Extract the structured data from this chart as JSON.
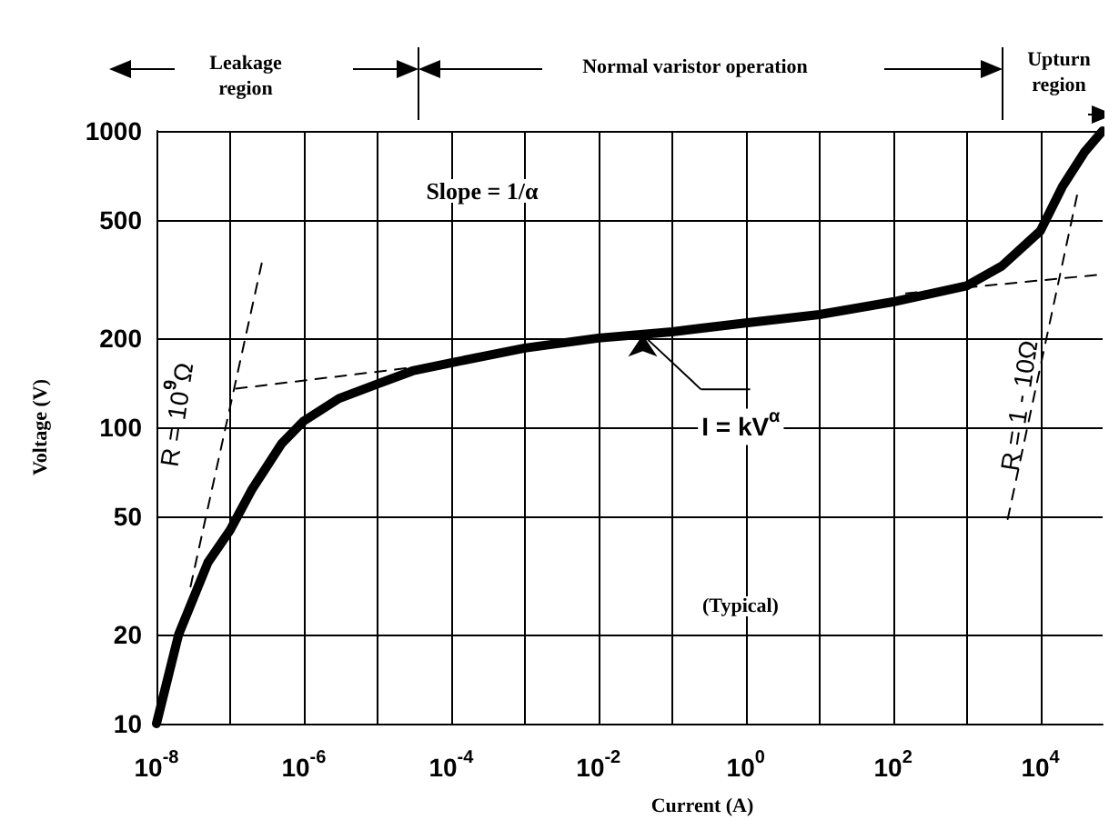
{
  "chart_data": {
    "type": "line",
    "xlabel": "Current (A)",
    "ylabel": "Voltage (V)",
    "log": "xy",
    "xlim": [
      1e-08,
      70000
    ],
    "ylim": [
      10,
      1000
    ],
    "xticks": [
      {
        "value": 1e-08,
        "label": "10$^{-8}$"
      },
      {
        "value": 1e-07,
        "label": null
      },
      {
        "value": 1e-06,
        "label": "10$^{-6}$"
      },
      {
        "value": 1e-05,
        "label": null
      },
      {
        "value": 0.0001,
        "label": "10$^{-4}$"
      },
      {
        "value": 0.001,
        "label": null
      },
      {
        "value": 0.01,
        "label": "10$^{-2}$"
      },
      {
        "value": 0.1,
        "label": null
      },
      {
        "value": 1,
        "label": "10$^{0}$"
      },
      {
        "value": 10,
        "label": null
      },
      {
        "value": 100,
        "label": "10$^{2}$"
      },
      {
        "value": 1000,
        "label": null
      },
      {
        "value": 10000,
        "label": "10$^{4}$"
      }
    ],
    "yticks": [
      10,
      20,
      50,
      100,
      200,
      500,
      1000
    ],
    "grid": true,
    "series": [
      {
        "color": "#000000",
        "line_style": "solid",
        "x": [
          1e-08,
          2e-08,
          5e-08,
          1e-07,
          2e-07,
          5e-07,
          1e-06,
          3e-06,
          1e-05,
          3e-05,
          0.0001,
          0.001,
          0.01,
          0.1,
          1,
          10,
          100,
          1000,
          3000,
          10000,
          20000,
          40000,
          70000
        ],
        "values": [
          10,
          20,
          35,
          45,
          62,
          88,
          105,
          125,
          140,
          155,
          165,
          185,
          200,
          210,
          225,
          240,
          265,
          300,
          350,
          460,
          650,
          850,
          1000
        ]
      },
      {
        "color": "#000000",
        "line_style": "dashed",
        "x": [
          2.9e-08,
          2.8e-07
        ],
        "values": [
          29,
          375
        ]
      },
      {
        "color": "#000000",
        "line_style": "dashed",
        "x": [
          1.2e-07,
          0.0001
        ],
        "values": [
          135,
          165
        ]
      },
      {
        "color": "#000000",
        "line_style": "dashed",
        "x": [
          150,
          70000
        ],
        "values": [
          283,
          328
        ]
      },
      {
        "color": "#000000",
        "line_style": "dashed",
        "x": [
          3600,
          33000
        ],
        "values": [
          49,
          640
        ]
      }
    ],
    "annotations": [
      "Leakage\nregion",
      "Normal varistor operation",
      "Upturn\nregion",
      "Slope = 1/α",
      {
        "text": "I = kV$^{α}$",
        "x": 0.04,
        "y": 205
      },
      "R = 10$^{9}$Ω",
      "R = 1 - 10Ω",
      "(Typical)"
    ]
  }
}
